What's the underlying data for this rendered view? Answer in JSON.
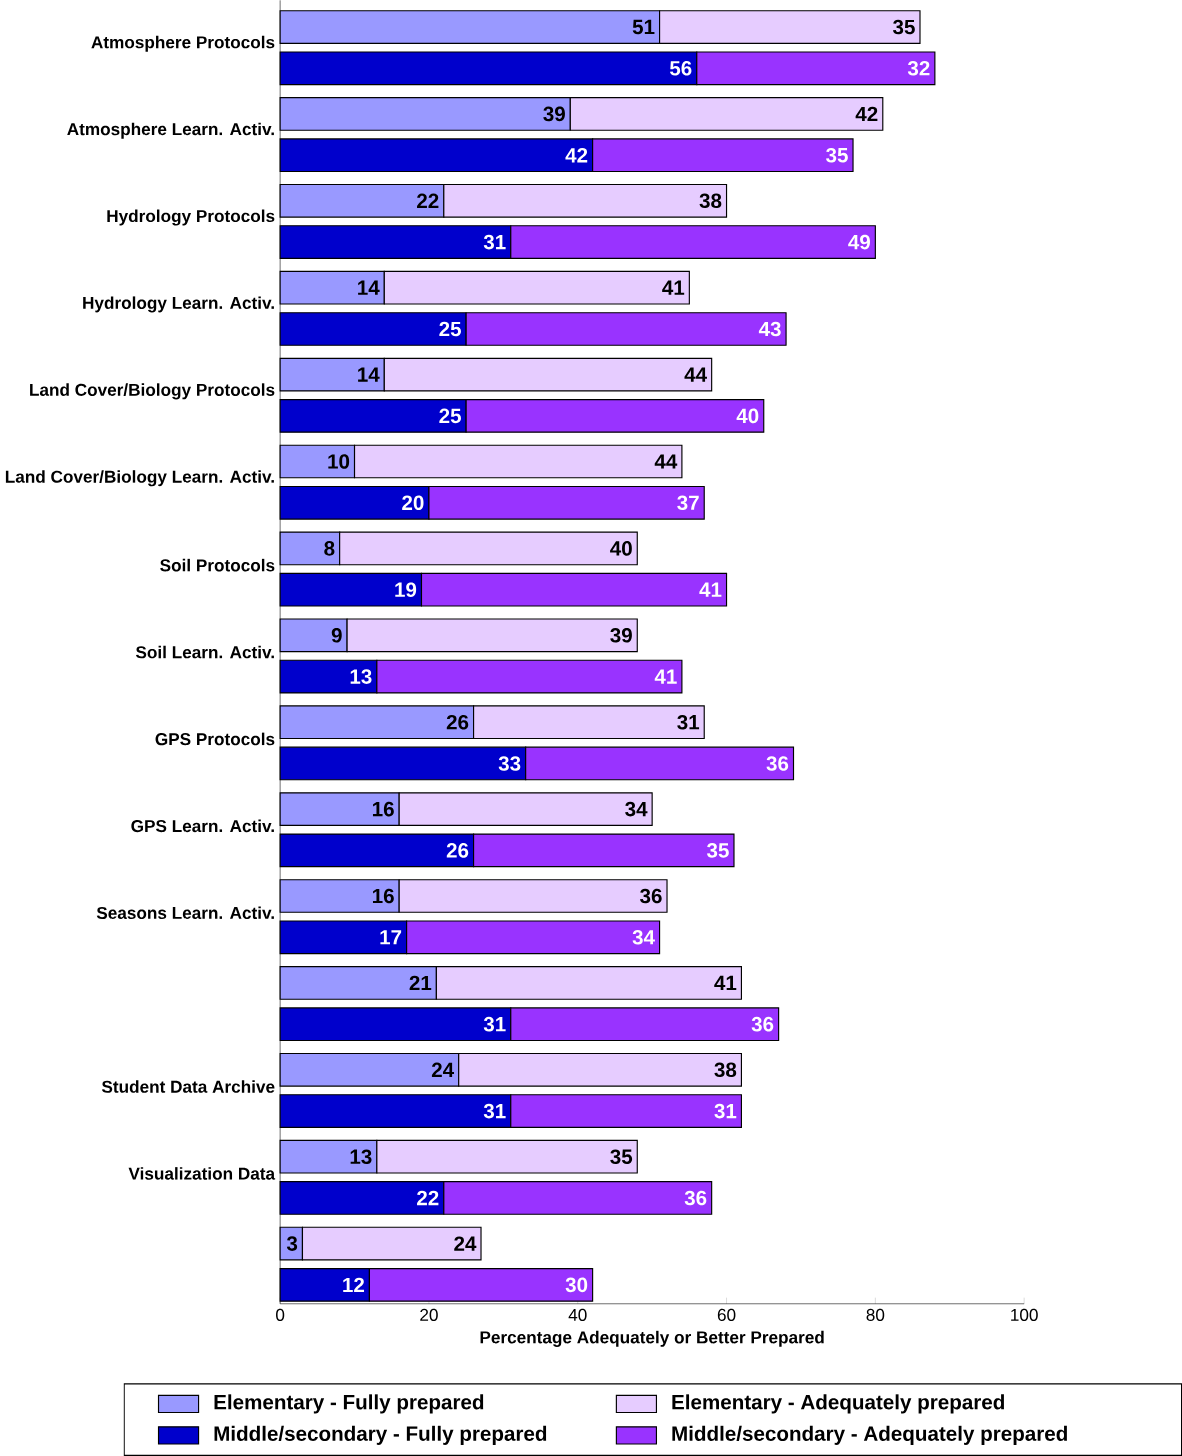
{
  "chart_data": {
    "type": "bar",
    "orientation": "horizontal",
    "data_labels": true,
    "legend": "bottom",
    "grid": false,
    "xlabel": "Percentage Adequately or Better Prepared",
    "xlim": [
      0,
      100
    ],
    "xticks": [
      0,
      20,
      40,
      60,
      80,
      100
    ],
    "categories": [
      "Atmosphere Protocols",
      "Atmosphere Learn. Activ.",
      "Hydrology Protocols",
      "Hydrology Learn. Activ.",
      "Land Cover/Biology Protocols",
      "Land Cover/Biology Learn. Activ.",
      "Soil Protocols",
      "Soil Learn. Activ.",
      "GPS Protocols",
      "GPS Learn. Activ.",
      "Seasons Learn. Activ.",
      null,
      "Student Data Archive",
      "Visualization Data",
      null
    ],
    "series": [
      {
        "name": "Elementary - Fully prepared",
        "color": "#9999ff",
        "base": [
          0,
          0,
          0,
          0,
          0,
          0,
          0,
          0,
          0,
          0,
          0,
          0,
          0,
          0,
          0
        ],
        "values": [
          51,
          39,
          22,
          14,
          14,
          10,
          8,
          9,
          26,
          16,
          16,
          21,
          24,
          13,
          3
        ]
      },
      {
        "name": "Elementary - Adequately prepared",
        "color": "#e6ccff",
        "base": [
          51,
          39,
          22,
          14,
          14,
          10,
          8,
          9,
          26,
          16,
          16,
          21,
          24,
          13,
          3
        ],
        "values": [
          35,
          42,
          38,
          41,
          44,
          44,
          40,
          39,
          31,
          34,
          36,
          41,
          38,
          35,
          24
        ]
      },
      {
        "name": "Middle/secondary - Fully prepared",
        "color": "#0000cc",
        "base": [
          0,
          0,
          0,
          0,
          0,
          0,
          0,
          0,
          0,
          0,
          0,
          0,
          0,
          0,
          0
        ],
        "values": [
          56,
          42,
          31,
          25,
          25,
          20,
          19,
          13,
          33,
          26,
          17,
          31,
          31,
          22,
          12
        ]
      },
      {
        "name": "Middle/secondary - Adequately prepared",
        "color": "#9933ff",
        "base": [
          56,
          42,
          31,
          25,
          25,
          20,
          19,
          13,
          33,
          26,
          17,
          31,
          31,
          22,
          12
        ],
        "values": [
          32,
          35,
          49,
          43,
          40,
          37,
          41,
          41,
          36,
          35,
          34,
          36,
          31,
          36,
          30
        ]
      }
    ]
  }
}
